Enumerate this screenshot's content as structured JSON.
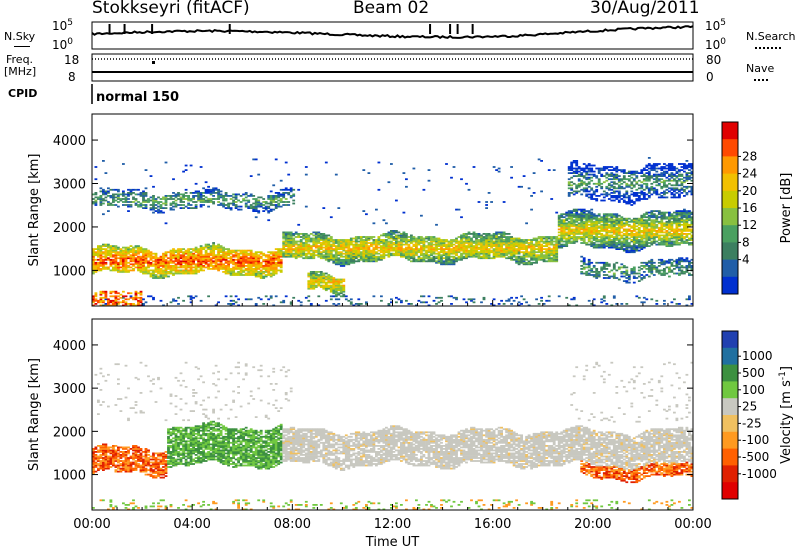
{
  "header": {
    "station": "Stokkseyri (fitACF)",
    "beam": "Beam 02",
    "date": "30/Aug/2011"
  },
  "panel_labels": {
    "nsky": "N.Sky",
    "nsearch": "N.Search",
    "freq_line1": "Freq.",
    "freq_line2": "[MHz]",
    "nave": "Nave",
    "cpid": "CPID",
    "cpid_value": "normal 150"
  },
  "chart_data": [
    {
      "type": "line",
      "name": "noise-panel",
      "left_axis": [
        "10^5",
        "10^0"
      ],
      "right_axis": [
        "10^5",
        "10^0"
      ],
      "left_label": "N.Sky",
      "right_label": "N.Search",
      "spikes_hours": [
        0.7,
        1.3,
        2.4,
        5.5,
        13.5,
        14.3,
        14.6,
        15.2
      ]
    },
    {
      "type": "line",
      "name": "freq-nave-panel",
      "left_axis": [
        "18",
        "8"
      ],
      "right_axis": [
        "80",
        "0"
      ],
      "left_label": "Freq. [MHz]",
      "right_label": "Nave",
      "freq_mhz": 8,
      "nave_dotted": 80
    },
    {
      "type": "heatmap",
      "name": "power-panel",
      "xlabel": "",
      "ylabel": "Slant Range [km]",
      "xlim_hours": [
        0,
        24
      ],
      "ylim_km": [
        180,
        4600
      ],
      "yticks": [
        1000,
        2000,
        3000,
        4000
      ],
      "colorbar_label": "Power [dB]",
      "colorbar_ticks": [
        "28",
        "24",
        "20",
        "16",
        "12",
        "8",
        "4"
      ],
      "colorbar_colors": [
        "#e00000",
        "#ff4a00",
        "#ff9900",
        "#f2c000",
        "#c8cc00",
        "#88c040",
        "#4aa060",
        "#3c7f60",
        "#205ea8",
        "#0030d0"
      ],
      "bands": [
        {
          "t": [
            0,
            7.5
          ],
          "r": [
            900,
            1500
          ],
          "level": "high"
        },
        {
          "t": [
            7.5,
            18.5
          ],
          "r": [
            1200,
            1800
          ],
          "level": "mid"
        },
        {
          "t": [
            18.5,
            24
          ],
          "r": [
            1500,
            2300
          ],
          "level": "mid"
        },
        {
          "t": [
            19.5,
            24
          ],
          "r": [
            800,
            1200
          ],
          "level": "low"
        },
        {
          "t": [
            8.5,
            10
          ],
          "r": [
            500,
            900
          ],
          "level": "mid"
        },
        {
          "t": [
            0,
            8
          ],
          "r": [
            2400,
            2800
          ],
          "level": "low"
        },
        {
          "t": [
            19,
            24
          ],
          "r": [
            2600,
            3400
          ],
          "level": "low"
        }
      ]
    },
    {
      "type": "heatmap",
      "name": "velocity-panel",
      "xlabel": "Time UT",
      "ylabel": "Slant Range [km]",
      "xlim_hours": [
        0,
        24
      ],
      "ylim_km": [
        180,
        4600
      ],
      "yticks": [
        1000,
        2000,
        3000,
        4000
      ],
      "xticks": [
        "00:00",
        "04:00",
        "08:00",
        "12:00",
        "16:00",
        "20:00",
        "00:00"
      ],
      "colorbar_label": "Velocity [m s^-1]",
      "colorbar_ticks": [
        "1000",
        "500",
        "100",
        "25",
        "-25",
        "-100",
        "-500",
        "-1000"
      ],
      "colorbar_colors": [
        "#2040b0",
        "#2070a0",
        "#3c9040",
        "#70c840",
        "#c8c8c0",
        "#f0c060",
        "#ff9a20",
        "#ff6000",
        "#e02000",
        "#e00000"
      ],
      "bands": [
        {
          "t": [
            0,
            3
          ],
          "r": [
            1000,
            1600
          ],
          "class": "negative"
        },
        {
          "t": [
            3,
            7.5
          ],
          "r": [
            1200,
            2100
          ],
          "class": "positive"
        },
        {
          "t": [
            7.5,
            24
          ],
          "r": [
            1200,
            2000
          ],
          "class": "ground"
        },
        {
          "t": [
            19.5,
            24
          ],
          "r": [
            900,
            1300
          ],
          "class": "negative"
        }
      ]
    }
  ]
}
